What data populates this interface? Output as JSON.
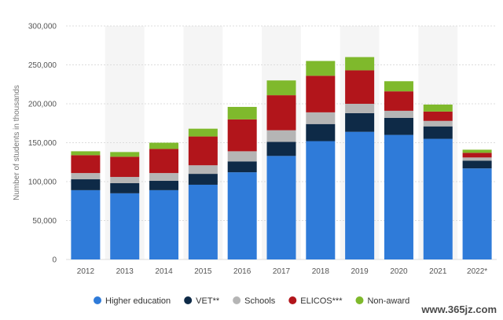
{
  "chart_data": {
    "type": "bar",
    "stacked": true,
    "title": "",
    "xlabel": "",
    "ylabel": "Number of students in thousands",
    "ylim": [
      0,
      300000
    ],
    "yticks": [
      0,
      50000,
      100000,
      150000,
      200000,
      250000,
      300000
    ],
    "ytick_labels": [
      "0",
      "50,000",
      "100,000",
      "150,000",
      "200,000",
      "250,000",
      "300,000"
    ],
    "grid": true,
    "legend_position": "bottom",
    "categories": [
      "2012",
      "2013",
      "2014",
      "2015",
      "2016",
      "2017",
      "2018",
      "2019",
      "2020",
      "2021",
      "2022*"
    ],
    "series": [
      {
        "name": "Higher education",
        "color": "#2f7bd9",
        "values": [
          89000,
          85000,
          89000,
          96000,
          112000,
          133000,
          152000,
          164000,
          160000,
          155000,
          117000
        ]
      },
      {
        "name": "VET**",
        "color": "#0e2a47",
        "values": [
          14000,
          13000,
          12000,
          14000,
          14000,
          18000,
          22000,
          24000,
          22000,
          16000,
          10000
        ]
      },
      {
        "name": "Schools",
        "color": "#b5b5b5",
        "values": [
          8000,
          8000,
          10000,
          11000,
          13000,
          15000,
          15000,
          12000,
          9000,
          7000,
          4000
        ]
      },
      {
        "name": "ELICOS***",
        "color": "#b2151b",
        "values": [
          23000,
          26000,
          31000,
          37000,
          41000,
          45000,
          47000,
          43000,
          25000,
          12000,
          6000
        ]
      },
      {
        "name": "Non-award",
        "color": "#7fb92c",
        "values": [
          5000,
          6000,
          8000,
          10000,
          16000,
          19000,
          19000,
          17000,
          13000,
          9000,
          4000
        ]
      }
    ]
  },
  "watermark": "www.365jz.com"
}
